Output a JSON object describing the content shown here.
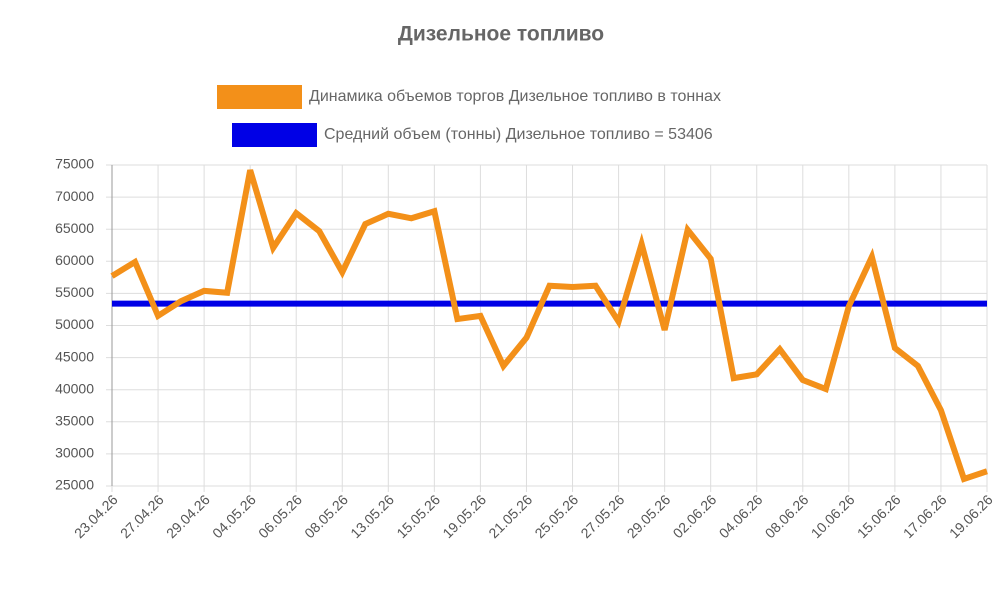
{
  "chart_data": {
    "type": "line",
    "title": "Дизельное топливо",
    "categories": [
      "23.04.26",
      null,
      "27.04.26",
      null,
      "29.04.26",
      null,
      "04.05.26",
      null,
      "06.05.26",
      null,
      "08.05.26",
      null,
      "13.05.26",
      null,
      "15.05.26",
      null,
      "19.05.26",
      null,
      "21.05.26",
      null,
      "25.05.26",
      null,
      "27.05.26",
      null,
      "29.05.26",
      null,
      "02.06.26",
      null,
      "04.06.26",
      null,
      "08.06.26",
      null,
      "10.06.26",
      null,
      "15.06.26",
      null,
      "17.06.26",
      null,
      "19.06.26"
    ],
    "series": [
      {
        "name": "Динамика объемов торгов Дизельное топливо в тоннах",
        "color": "#f39019",
        "values": [
          57700,
          59900,
          51500,
          53800,
          55400,
          55100,
          74200,
          62100,
          67500,
          64700,
          58300,
          65800,
          67400,
          66700,
          67800,
          51000,
          51500,
          43700,
          48100,
          56200,
          56000,
          56200,
          50600,
          62700,
          49300,
          64900,
          60400,
          41800,
          42400,
          46300,
          41500,
          40100,
          53000,
          60700,
          46500,
          43700,
          36800,
          26100,
          27300
        ]
      },
      {
        "name": "Средний объем (тонны) Дизельное топливо = 53406",
        "color": "#0000e6",
        "values": [
          53406,
          53406,
          53406,
          53406,
          53406,
          53406,
          53406,
          53406,
          53406,
          53406,
          53406,
          53406,
          53406,
          53406,
          53406,
          53406,
          53406,
          53406,
          53406,
          53406,
          53406,
          53406,
          53406,
          53406,
          53406,
          53406,
          53406,
          53406,
          53406,
          53406,
          53406,
          53406,
          53406,
          53406,
          53406,
          53406,
          53406,
          53406,
          53406
        ]
      }
    ],
    "ylim": [
      25000,
      75000
    ],
    "yticks": [
      25000,
      30000,
      35000,
      40000,
      45000,
      50000,
      55000,
      60000,
      65000,
      70000,
      75000
    ],
    "grid": true
  }
}
